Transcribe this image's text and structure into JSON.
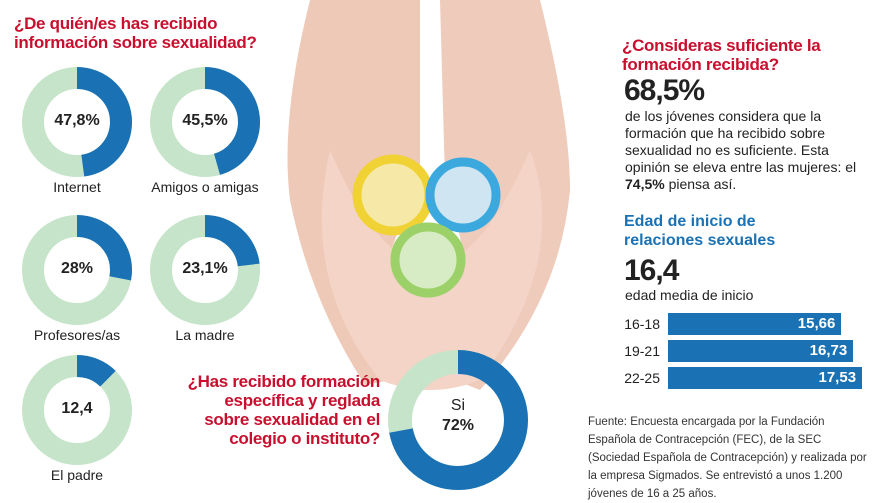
{
  "colors": {
    "primary": "#1a72b4",
    "secondary": "#c6e4c9",
    "accent": "#c8102e"
  },
  "sources_question": "¿De quién/es has recibido información sobre sexualidad?",
  "sufficient_question": "¿Consideras suficiente la formación recibida?",
  "sufficient_value": "68,5%",
  "sufficient_text_1": "de los jóvenes considera que la formación que ha recibido sobre sexualidad no es suficiente. Esta opinión se eleva entre las mujeres: el ",
  "sufficient_text_bold": "74,5%",
  "sufficient_text_2": " piensa así.",
  "age_title": "Edad de inicio de relaciones sexuales",
  "age_value": "16,4",
  "age_caption": "edad media de inicio",
  "school_question": "¿Has recibido formación específica y reglada sobre sexualidad en el colegio o instituto?",
  "source_note": "Fuente: Encuesta encargada por la Fundación Española de Contracepción (FEC), de la SEC (Sociedad Española de Contracepción) y realizada por la empresa Sigmados. Se entrevistó a unos 1.200 jóvenes de 16 a 25 años.",
  "chart_data": [
    {
      "type": "pie",
      "title": "¿De quién/es has recibido información sobre sexualidad?",
      "categories": [
        "Internet",
        "Amigos o amigas",
        "Profesores/as",
        "La madre",
        "El padre"
      ],
      "values": [
        47.8,
        45.5,
        28,
        23.1,
        12.4
      ],
      "labels": [
        "47,8%",
        "45,5%",
        "28%",
        "23,1%",
        "12,4"
      ]
    },
    {
      "type": "pie",
      "title": "¿Has recibido formación específica y reglada sobre sexualidad en el colegio o instituto?",
      "categories": [
        "Si"
      ],
      "values": [
        72
      ],
      "labels": [
        "Si",
        "72%"
      ]
    },
    {
      "type": "bar",
      "title": "Edad de inicio de relaciones sexuales",
      "categories": [
        "16-18",
        "19-21",
        "22-25"
      ],
      "values": [
        15.66,
        16.73,
        17.53
      ],
      "labels": [
        "15,66",
        "16,73",
        "17,53"
      ]
    }
  ]
}
